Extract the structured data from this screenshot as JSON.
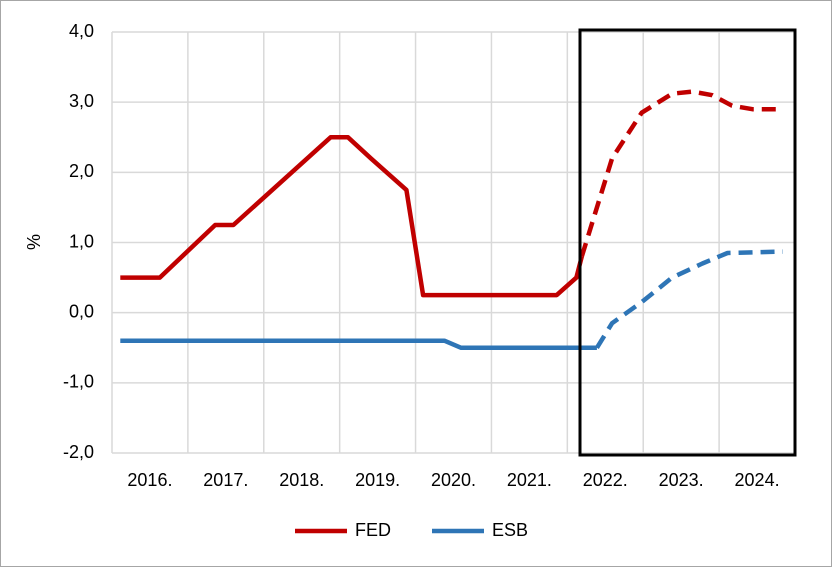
{
  "chart_data": {
    "type": "line",
    "y_label": "%",
    "categories": [
      "2016.",
      "2017.",
      "2018.",
      "2019.",
      "2020.",
      "2021.",
      "2022.",
      "2023.",
      "2024."
    ],
    "xlim": [
      2016,
      2025
    ],
    "ylim": [
      -2,
      4
    ],
    "yticks": [
      {
        "value": -2,
        "label": "-2,0"
      },
      {
        "value": -1,
        "label": "-1,0"
      },
      {
        "value": 0,
        "label": "0,0"
      },
      {
        "value": 1,
        "label": "1,0"
      },
      {
        "value": 2,
        "label": "2,0"
      },
      {
        "value": 3,
        "label": "3,0"
      },
      {
        "value": 4,
        "label": "4,0"
      }
    ],
    "grid": true,
    "series": [
      {
        "name": "FED",
        "color": "#c00000",
        "dashed_from": 2022.19,
        "x": [
          2016.11,
          2016.63,
          2017.36,
          2017.6,
          2018.88,
          2019.11,
          2019.41,
          2019.88,
          2020.1,
          2021.86,
          2022.12,
          2022.19,
          2022.59,
          2022.98,
          2023.38,
          2023.65,
          2023.91,
          2024.17,
          2024.44,
          2024.84
        ],
        "values": [
          0.5,
          0.5,
          1.25,
          1.25,
          2.5,
          2.5,
          2.2,
          1.75,
          0.25,
          0.25,
          0.5,
          0.8,
          2.2,
          2.85,
          3.12,
          3.15,
          3.1,
          2.95,
          2.9,
          2.9
        ]
      },
      {
        "name": "ESB",
        "color": "#2e75b6",
        "dashed_from": 2022.39,
        "x": [
          2016.11,
          2020.38,
          2020.6,
          2022.39,
          2022.59,
          2022.98,
          2023.38,
          2023.78,
          2024.11,
          2024.84
        ],
        "values": [
          -0.4,
          -0.4,
          -0.5,
          -0.5,
          -0.15,
          0.15,
          0.5,
          0.7,
          0.85,
          0.87
        ]
      }
    ]
  }
}
